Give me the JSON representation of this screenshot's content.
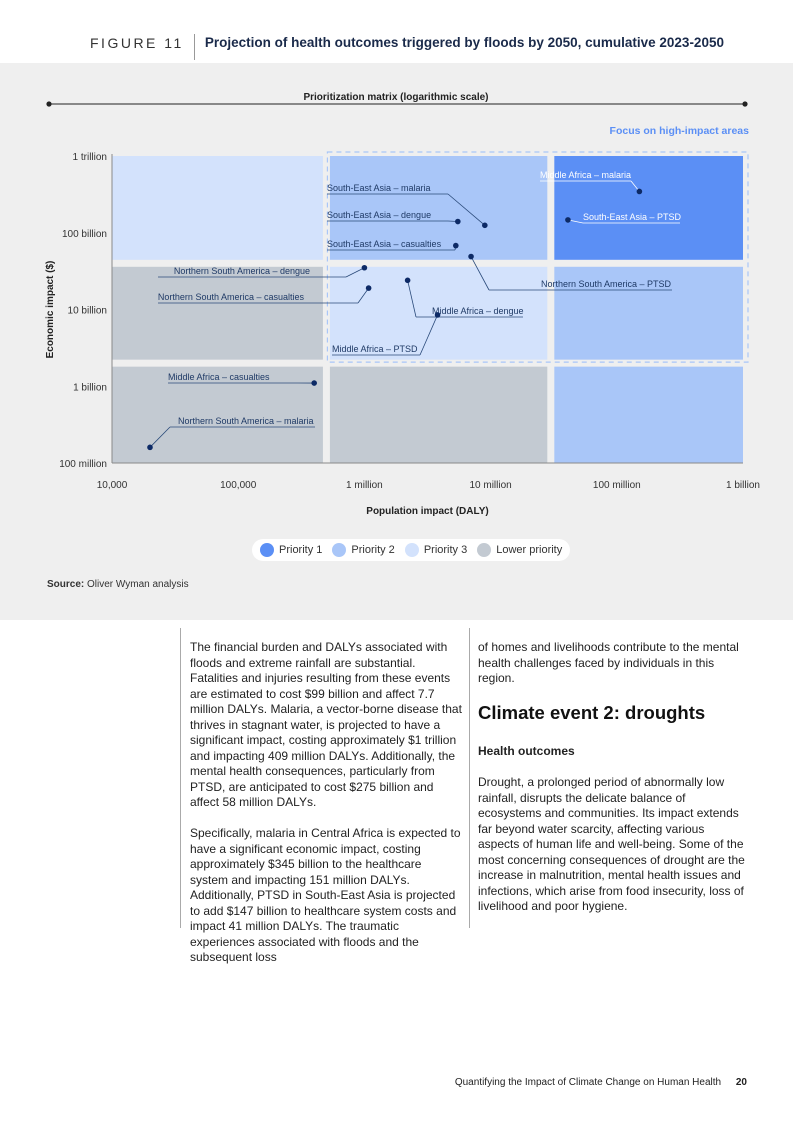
{
  "figure": {
    "label": "FIGURE 11",
    "title": "Projection of health outcomes triggered by floods by 2050, cumulative 2023-2050"
  },
  "chart_data": {
    "type": "scatter",
    "title": "Prioritization matrix (logarithmic scale)",
    "focus_label": "Focus on high-impact areas",
    "xlabel": "Population impact (DALY)",
    "ylabel": "Economic impact ($)",
    "x_scale": "log",
    "y_scale": "log",
    "xlim": [
      10000,
      1000000000
    ],
    "ylim": [
      100000000,
      1000000000000
    ],
    "x_ticks": [
      {
        "value": 10000,
        "label": "10,000"
      },
      {
        "value": 100000,
        "label": "100,000"
      },
      {
        "value": 1000000,
        "label": "1 million"
      },
      {
        "value": 10000000,
        "label": "10 million"
      },
      {
        "value": 100000000,
        "label": "100 million"
      },
      {
        "value": 1000000000,
        "label": "1 billion"
      }
    ],
    "y_ticks": [
      {
        "value": 1000000000000,
        "label": "1 trillion"
      },
      {
        "value": 100000000000,
        "label": "100 billion"
      },
      {
        "value": 10000000000,
        "label": "10 billion"
      },
      {
        "value": 1000000000,
        "label": "1 billion"
      },
      {
        "value": 100000000,
        "label": "100 million"
      }
    ],
    "priority_colors": {
      "p1": "#5b8ff5",
      "p2": "#a9c6f8",
      "p3": "#d3e2fc",
      "low": "#c3cad2"
    },
    "points": [
      {
        "label": "Middle Africa – malaria",
        "x": 151000000,
        "y": 345000000000
      },
      {
        "label": "South-East Asia – PTSD",
        "x": 41000000,
        "y": 147000000000
      },
      {
        "label": "South-East Asia – malaria",
        "x": 9000000,
        "y": 125000000000
      },
      {
        "label": "South-East Asia – dengue",
        "x": 5500000,
        "y": 140000000000
      },
      {
        "label": "South-East Asia – casualties",
        "x": 5300000,
        "y": 68000000000
      },
      {
        "label": "Northern South America – PTSD",
        "x": 7000000,
        "y": 49000000000
      },
      {
        "label": "Northern South America – dengue",
        "x": 1000000,
        "y": 35000000000
      },
      {
        "label": "Northern South America – casualties",
        "x": 1080000,
        "y": 19000000000
      },
      {
        "label": "Middle Africa – dengue",
        "x": 2200000,
        "y": 24000000000
      },
      {
        "label": "Middle Africa – PTSD",
        "x": 3800000,
        "y": 8500000000
      },
      {
        "label": "Middle Africa – casualties",
        "x": 400000,
        "y": 1100000000
      },
      {
        "label": "Northern South America – malaria",
        "x": 20000,
        "y": 160000000
      }
    ],
    "legend": [
      "Priority 1",
      "Priority 2",
      "Priority 3",
      "Lower priority"
    ]
  },
  "source": {
    "label": "Source:",
    "text": "Oliver Wyman analysis"
  },
  "body": {
    "left_paragraphs": [
      "The financial burden and DALYs associated with floods and extreme rainfall are substantial. Fatalities and injuries resulting from these events are estimated to cost $99 billion and affect 7.7 million DALYs. Malaria, a vector-borne disease that thrives in stagnant water, is projected to have a significant impact, costing approximately $1 trillion and impacting 409 million DALYs. Additionally, the mental health consequences, particularly from PTSD, are anticipated to cost $275 billion and affect 58 million DALYs.",
      "Specifically, malaria in Central Africa is expected to have a significant economic impact, costing approximately $345 billion to the healthcare system and impacting 151 million DALYs. Additionally, PTSD in South-East Asia is projected to add $147 billion to healthcare system costs and impact 41 million DALYs. The traumatic experiences associated with floods and the subsequent loss"
    ],
    "right_intro": "of homes and livelihoods contribute to the mental health challenges faced by individuals in this region.",
    "section_title": "Climate event 2: droughts",
    "subsection_title": "Health outcomes",
    "right_paragraph": "Drought, a prolonged period of abnormally low rainfall, disrupts the delicate balance of ecosystems and communities. Its impact extends far beyond water scarcity, affecting various aspects of human life and well-being. Some of the most concerning consequences of drought are the increase in malnutrition, mental health issues and infections, which arise from food insecurity, loss of livelihood and poor hygiene."
  },
  "footer": {
    "text": "Quantifying the Impact of Climate Change on Human Health",
    "page": "20"
  }
}
